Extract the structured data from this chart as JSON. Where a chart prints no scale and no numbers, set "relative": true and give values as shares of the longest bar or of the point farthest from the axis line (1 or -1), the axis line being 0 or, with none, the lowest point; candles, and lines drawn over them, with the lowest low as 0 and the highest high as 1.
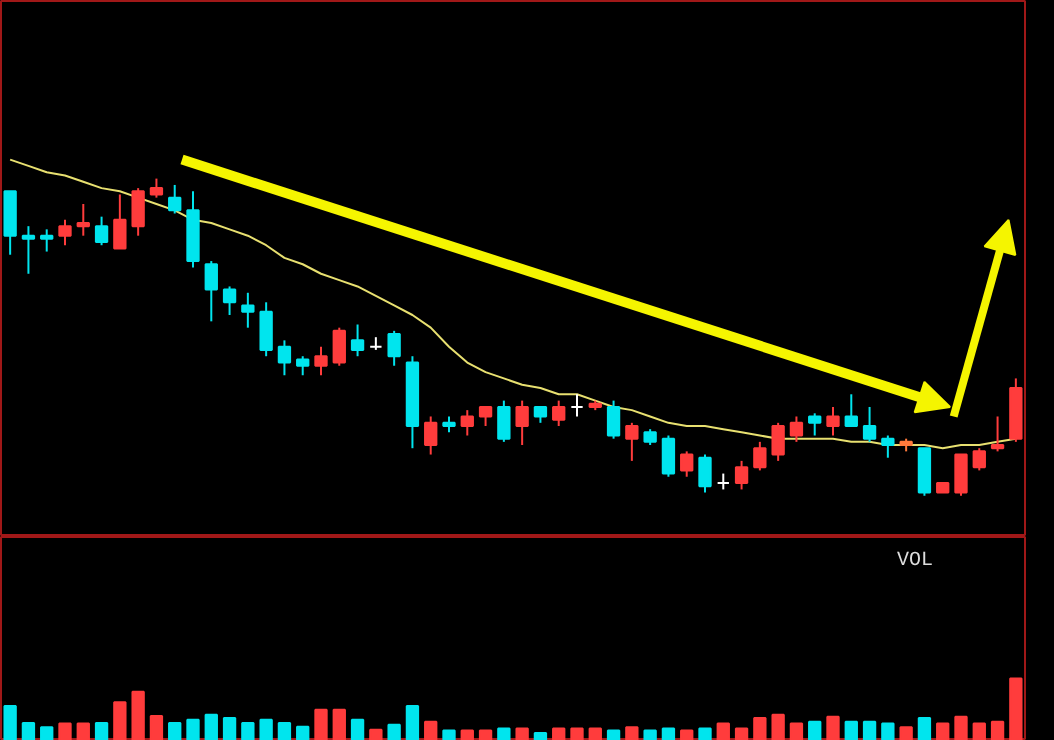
{
  "chart_data": [
    {
      "type": "candlestick",
      "relative": true,
      "tick_labels": false,
      "categories": [
        null,
        null,
        null,
        null,
        null,
        null,
        null,
        null,
        null,
        null,
        null,
        null,
        null,
        null,
        null,
        null,
        null,
        null,
        null,
        null,
        null,
        null,
        null,
        null,
        null,
        null,
        null,
        null,
        null,
        null,
        null,
        null,
        null,
        null,
        null,
        null,
        null,
        null,
        null,
        null,
        null,
        null,
        null,
        null,
        null,
        null,
        null,
        null,
        null,
        null,
        null,
        null,
        null,
        null,
        null,
        null
      ],
      "ohlc": [
        [
          0.96,
          0.96,
          0.76,
          0.82
        ],
        [
          0.82,
          0.85,
          0.7,
          0.81
        ],
        [
          0.82,
          0.84,
          0.77,
          0.81
        ],
        [
          0.82,
          0.87,
          0.79,
          0.85
        ],
        [
          0.85,
          0.92,
          0.82,
          0.86
        ],
        [
          0.85,
          0.88,
          0.79,
          0.8
        ],
        [
          0.78,
          0.95,
          0.78,
          0.87
        ],
        [
          0.85,
          0.97,
          0.82,
          0.96
        ],
        [
          0.95,
          1.0,
          0.94,
          0.97
        ],
        [
          0.94,
          0.98,
          0.89,
          0.9
        ],
        [
          0.9,
          0.96,
          0.72,
          0.74
        ],
        [
          0.73,
          0.74,
          0.55,
          0.65
        ],
        [
          0.65,
          0.66,
          0.57,
          0.61
        ],
        [
          0.6,
          0.64,
          0.53,
          0.58
        ],
        [
          0.58,
          0.61,
          0.44,
          0.46
        ],
        [
          0.47,
          0.49,
          0.38,
          0.42
        ],
        [
          0.43,
          0.44,
          0.38,
          0.41
        ],
        [
          0.41,
          0.47,
          0.38,
          0.44
        ],
        [
          0.42,
          0.53,
          0.41,
          0.52
        ],
        [
          0.49,
          0.54,
          0.44,
          0.46
        ],
        [
          0.47,
          0.5,
          0.46,
          0.47
        ],
        [
          0.51,
          0.52,
          0.41,
          0.44
        ],
        [
          0.42,
          0.44,
          0.15,
          0.22
        ],
        [
          0.16,
          0.25,
          0.13,
          0.23
        ],
        [
          0.23,
          0.25,
          0.2,
          0.22
        ],
        [
          0.22,
          0.27,
          0.19,
          0.25
        ],
        [
          0.25,
          0.28,
          0.22,
          0.28
        ],
        [
          0.28,
          0.3,
          0.17,
          0.18
        ],
        [
          0.22,
          0.3,
          0.16,
          0.28
        ],
        [
          0.28,
          0.28,
          0.23,
          0.25
        ],
        [
          0.24,
          0.3,
          0.22,
          0.28
        ],
        [
          0.28,
          0.32,
          0.25,
          0.28
        ],
        [
          0.28,
          0.3,
          0.27,
          0.29
        ],
        [
          0.28,
          0.3,
          0.18,
          0.19
        ],
        [
          0.18,
          0.23,
          0.11,
          0.22
        ],
        [
          0.2,
          0.21,
          0.16,
          0.17
        ],
        [
          0.18,
          0.19,
          0.06,
          0.07
        ],
        [
          0.08,
          0.14,
          0.06,
          0.13
        ],
        [
          0.12,
          0.13,
          0.01,
          0.03
        ],
        [
          0.04,
          0.07,
          0.02,
          0.04
        ],
        [
          0.04,
          0.11,
          0.02,
          0.09
        ],
        [
          0.09,
          0.17,
          0.08,
          0.15
        ],
        [
          0.13,
          0.23,
          0.11,
          0.22
        ],
        [
          0.19,
          0.25,
          0.17,
          0.23
        ],
        [
          0.25,
          0.26,
          0.19,
          0.23
        ],
        [
          0.22,
          0.28,
          0.19,
          0.25
        ],
        [
          0.25,
          0.32,
          0.22,
          0.22
        ],
        [
          0.22,
          0.28,
          0.17,
          0.18
        ],
        [
          0.18,
          0.19,
          0.12,
          0.16
        ],
        [
          0.16,
          0.18,
          0.14,
          0.17
        ],
        [
          0.15,
          0.15,
          0.0,
          0.01
        ],
        [
          0.01,
          0.04,
          0.01,
          0.04
        ],
        [
          0.01,
          0.13,
          0.0,
          0.13
        ],
        [
          0.09,
          0.15,
          0.08,
          0.14
        ],
        [
          0.15,
          0.25,
          0.14,
          0.16
        ],
        [
          0.18,
          0.37,
          0.17,
          0.34
        ]
      ],
      "colors": [
        "#00e5ee",
        "#00e5ee",
        "#00e5ee",
        "#ff3c3c",
        "#ff3c3c",
        "#00e5ee",
        "#ff3c3c",
        "#ff3c3c",
        "#ff3c3c",
        "#00e5ee",
        "#00e5ee",
        "#00e5ee",
        "#00e5ee",
        "#00e5ee",
        "#00e5ee",
        "#00e5ee",
        "#00e5ee",
        "#ff3c3c",
        "#ff3c3c",
        "#00e5ee",
        "#ffffff",
        "#00e5ee",
        "#00e5ee",
        "#ff3c3c",
        "#00e5ee",
        "#ff3c3c",
        "#ff3c3c",
        "#00e5ee",
        "#ff3c3c",
        "#00e5ee",
        "#ff3c3c",
        "#ffffff",
        "#ff3c3c",
        "#00e5ee",
        "#ff3c3c",
        "#00e5ee",
        "#00e5ee",
        "#ff3c3c",
        "#00e5ee",
        "#ffffff",
        "#ff3c3c",
        "#ff3c3c",
        "#ff3c3c",
        "#ff3c3c",
        "#00e5ee",
        "#ff3c3c",
        "#00e5ee",
        "#00e5ee",
        "#00e5ee",
        "#ff7a3c",
        "#00e5ee",
        "#ff3c3c",
        "#ff3c3c",
        "#ff3c3c",
        "#ff3c3c",
        "#ff3c3c"
      ],
      "series": [
        {
          "type": "line",
          "color": "#e8e070",
          "values": [
            1.06,
            1.04,
            1.02,
            1.01,
            0.99,
            0.97,
            0.96,
            0.94,
            0.92,
            0.9,
            0.87,
            0.86,
            0.84,
            0.82,
            0.79,
            0.75,
            0.73,
            0.7,
            0.68,
            0.66,
            0.63,
            0.6,
            0.57,
            0.53,
            0.47,
            0.42,
            0.39,
            0.37,
            0.35,
            0.34,
            0.32,
            0.32,
            0.3,
            0.28,
            0.27,
            0.25,
            0.23,
            0.22,
            0.22,
            0.21,
            0.2,
            0.19,
            0.18,
            0.18,
            0.18,
            0.18,
            0.17,
            0.17,
            0.16,
            0.16,
            0.16,
            0.15,
            0.16,
            0.16,
            0.17,
            0.18
          ]
        }
      ]
    },
    {
      "type": "bar",
      "relative": true,
      "tick_labels": false,
      "title": "VOL",
      "categories": [
        null,
        null,
        null,
        null,
        null,
        null,
        null,
        null,
        null,
        null,
        null,
        null,
        null,
        null,
        null,
        null,
        null,
        null,
        null,
        null,
        null,
        null,
        null,
        null,
        null,
        null,
        null,
        null,
        null,
        null,
        null,
        null,
        null,
        null,
        null,
        null,
        null,
        null,
        null,
        null,
        null,
        null,
        null,
        null,
        null,
        null,
        null,
        null,
        null,
        null,
        null,
        null,
        null,
        null,
        null,
        null
      ],
      "values": [
        0.56,
        0.29,
        0.22,
        0.28,
        0.28,
        0.29,
        0.62,
        0.79,
        0.4,
        0.29,
        0.34,
        0.42,
        0.37,
        0.29,
        0.34,
        0.29,
        0.23,
        0.5,
        0.5,
        0.34,
        0.18,
        0.26,
        0.56,
        0.31,
        0.17,
        0.17,
        0.17,
        0.2,
        0.2,
        0.13,
        0.2,
        0.2,
        0.2,
        0.17,
        0.22,
        0.17,
        0.2,
        0.17,
        0.2,
        0.28,
        0.2,
        0.37,
        0.42,
        0.28,
        0.31,
        0.39,
        0.31,
        0.31,
        0.28,
        0.22,
        0.37,
        0.28,
        0.39,
        0.28,
        0.31,
        1.0
      ],
      "colors": [
        "#00e5ee",
        "#00e5ee",
        "#00e5ee",
        "#ff3c3c",
        "#ff3c3c",
        "#00e5ee",
        "#ff3c3c",
        "#ff3c3c",
        "#ff3c3c",
        "#00e5ee",
        "#00e5ee",
        "#00e5ee",
        "#00e5ee",
        "#00e5ee",
        "#00e5ee",
        "#00e5ee",
        "#00e5ee",
        "#ff3c3c",
        "#ff3c3c",
        "#00e5ee",
        "#ff3c3c",
        "#00e5ee",
        "#00e5ee",
        "#ff3c3c",
        "#00e5ee",
        "#ff3c3c",
        "#ff3c3c",
        "#00e5ee",
        "#ff3c3c",
        "#00e5ee",
        "#ff3c3c",
        "#ff3c3c",
        "#ff3c3c",
        "#00e5ee",
        "#ff3c3c",
        "#00e5ee",
        "#00e5ee",
        "#ff3c3c",
        "#00e5ee",
        "#ff3c3c",
        "#ff3c3c",
        "#ff3c3c",
        "#ff3c3c",
        "#ff3c3c",
        "#00e5ee",
        "#ff3c3c",
        "#00e5ee",
        "#00e5ee",
        "#00e5ee",
        "#ff3c3c",
        "#00e5ee",
        "#ff3c3c",
        "#ff3c3c",
        "#ff3c3c",
        "#ff3c3c",
        "#ff3c3c"
      ]
    }
  ]
}
